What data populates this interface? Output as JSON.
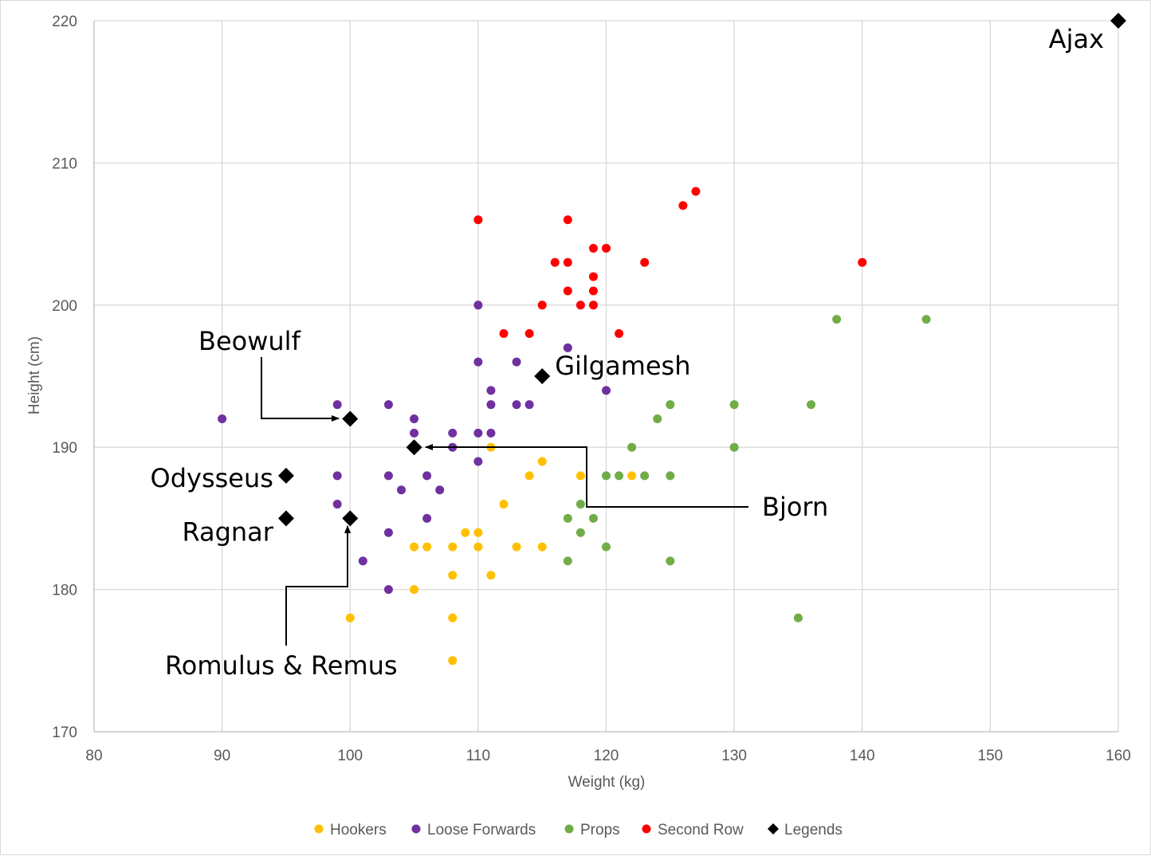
{
  "chart_data": {
    "type": "scatter",
    "title": "",
    "xlabel": "Weight (kg)",
    "ylabel": "Height (cm)",
    "xlim": [
      80,
      160
    ],
    "ylim": [
      170,
      220
    ],
    "xticks": [
      "80",
      "90",
      "100",
      "110",
      "120",
      "130",
      "140",
      "150",
      "160"
    ],
    "yticks": [
      "170",
      "180",
      "190",
      "200",
      "210",
      "220"
    ],
    "grid": true,
    "legend_position": "bottom",
    "series": [
      {
        "name": "Hookers",
        "color": "#FFC000",
        "marker": "circle",
        "points": [
          [
            100,
            178
          ],
          [
            105,
            183
          ],
          [
            105,
            180
          ],
          [
            106,
            183
          ],
          [
            108,
            183
          ],
          [
            108,
            181
          ],
          [
            108,
            178
          ],
          [
            108,
            175
          ],
          [
            109,
            184
          ],
          [
            110,
            184
          ],
          [
            110,
            183
          ],
          [
            111,
            181
          ],
          [
            111,
            190
          ],
          [
            112,
            186
          ],
          [
            113,
            183
          ],
          [
            114,
            188
          ],
          [
            115,
            189
          ],
          [
            115,
            183
          ],
          [
            118,
            188
          ],
          [
            122,
            188
          ]
        ]
      },
      {
        "name": "Loose Forwards",
        "color": "#7030A0",
        "marker": "circle",
        "points": [
          [
            90,
            192
          ],
          [
            99,
            193
          ],
          [
            99,
            188
          ],
          [
            99,
            186
          ],
          [
            101,
            182
          ],
          [
            103,
            193
          ],
          [
            103,
            188
          ],
          [
            103,
            184
          ],
          [
            103,
            180
          ],
          [
            104,
            187
          ],
          [
            105,
            192
          ],
          [
            105,
            191
          ],
          [
            106,
            188
          ],
          [
            106,
            185
          ],
          [
            107,
            187
          ],
          [
            108,
            191
          ],
          [
            108,
            190
          ],
          [
            110,
            200
          ],
          [
            110,
            196
          ],
          [
            110,
            191
          ],
          [
            110,
            189
          ],
          [
            111,
            194
          ],
          [
            111,
            193
          ],
          [
            111,
            191
          ],
          [
            113,
            196
          ],
          [
            113,
            193
          ],
          [
            114,
            193
          ],
          [
            117,
            197
          ],
          [
            120,
            194
          ]
        ]
      },
      {
        "name": "Props",
        "color": "#70AD47",
        "marker": "circle",
        "points": [
          [
            117,
            185
          ],
          [
            117,
            182
          ],
          [
            118,
            186
          ],
          [
            118,
            184
          ],
          [
            119,
            185
          ],
          [
            120,
            188
          ],
          [
            120,
            183
          ],
          [
            121,
            188
          ],
          [
            122,
            190
          ],
          [
            123,
            188
          ],
          [
            124,
            192
          ],
          [
            125,
            193
          ],
          [
            125,
            188
          ],
          [
            125,
            182
          ],
          [
            130,
            193
          ],
          [
            130,
            190
          ],
          [
            135,
            178
          ],
          [
            136,
            193
          ],
          [
            138,
            199
          ],
          [
            145,
            199
          ]
        ]
      },
      {
        "name": "Second Row",
        "color": "#FF0000",
        "marker": "circle",
        "points": [
          [
            110,
            206
          ],
          [
            112,
            198
          ],
          [
            114,
            198
          ],
          [
            115,
            200
          ],
          [
            116,
            203
          ],
          [
            117,
            206
          ],
          [
            117,
            203
          ],
          [
            117,
            201
          ],
          [
            118,
            200
          ],
          [
            119,
            204
          ],
          [
            119,
            202
          ],
          [
            119,
            201
          ],
          [
            119,
            200
          ],
          [
            120,
            204
          ],
          [
            121,
            198
          ],
          [
            123,
            203
          ],
          [
            126,
            207
          ],
          [
            127,
            208
          ],
          [
            140,
            203
          ]
        ]
      },
      {
        "name": "Legends",
        "color": "#000000",
        "marker": "diamond",
        "points": [
          [
            160,
            220
          ],
          [
            115,
            195
          ],
          [
            100,
            192
          ],
          [
            105,
            190
          ],
          [
            95,
            188
          ],
          [
            95,
            185
          ],
          [
            100,
            185
          ]
        ]
      }
    ],
    "annotations": [
      {
        "text": "Ajax",
        "x": 160,
        "y": 220
      },
      {
        "text": "Gilgamesh",
        "x": 115,
        "y": 195
      },
      {
        "text": "Beowulf",
        "x": 100,
        "y": 192
      },
      {
        "text": "Bjorn",
        "x": 105,
        "y": 190
      },
      {
        "text": "Odysseus",
        "x": 95,
        "y": 188
      },
      {
        "text": "Ragnar",
        "x": 95,
        "y": 185
      },
      {
        "text": "Romulus & Remus",
        "x": 100,
        "y": 185
      }
    ]
  }
}
